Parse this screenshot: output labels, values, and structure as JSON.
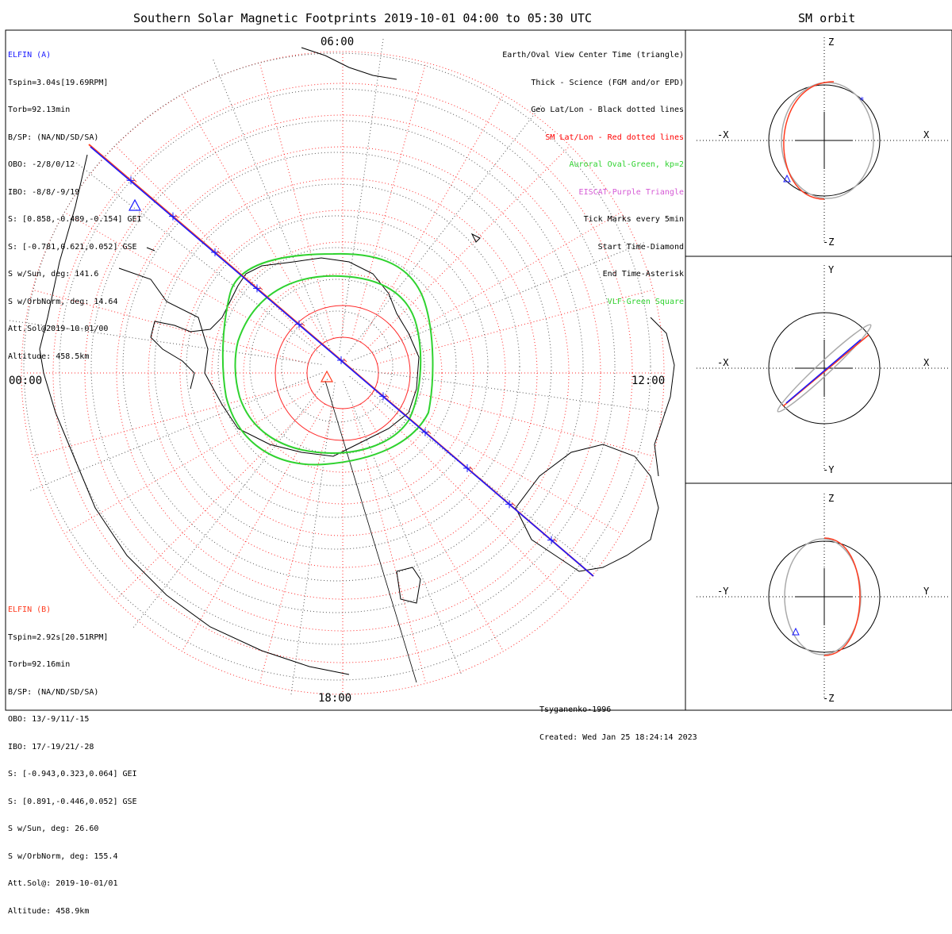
{
  "title": "Southern Solar Magnetic Footprints 2019-10-01 04:00 to 05:30 UTC",
  "right_title": "SM orbit",
  "colors": {
    "blue": "#1a1aff",
    "red": "#ff3b1f",
    "green": "#2fd22f",
    "purple": "#d55ad5",
    "grey": "#aaaaaa",
    "black": "#000000"
  },
  "elfin_a": {
    "name": "ELFIN (A)",
    "lines": [
      "Tspin=3.04s[19.69RPM]",
      "Torb=92.13min",
      "B/SP: (NA/ND/SD/SA)",
      "OBO: -2/8/0/12",
      "IBO: -8/8/-9/19",
      "S: [0.858,-0.489,-0.154] GEI",
      "S: [-0.781,0.621,0.052] GSE",
      "S w/Sun, deg: 141.6",
      "S w/OrbNorm, deg: 14.64",
      "Att.Sol@2019-10-01/00",
      "Altitude: 458.5km"
    ]
  },
  "elfin_b": {
    "name": "ELFIN (B)",
    "lines": [
      "Tspin=2.92s[20.51RPM]",
      "Torb=92.16min",
      "B/SP: (NA/ND/SD/SA)",
      "OBO: 13/-9/11/-15",
      "IBO: 17/-19/21/-28",
      "S: [-0.943,0.323,0.064] GEI",
      "S: [0.891,-0.446,0.052] GSE",
      "S w/Sun, deg: 26.60",
      "S w/OrbNorm, deg: 155.4",
      "Att.Sol@: 2019-10-01/01",
      "Altitude: 458.9km"
    ]
  },
  "legend": [
    {
      "text": "Earth/Oval View Center Time (triangle)",
      "color": "#000000"
    },
    {
      "text": "Thick - Science (FGM and/or EPD)",
      "color": "#000000"
    },
    {
      "text": "Geo Lat/Lon - Black dotted lines",
      "color": "#000000"
    },
    {
      "text": "SM Lat/Lon - Red dotted lines",
      "color": "#ff0000"
    },
    {
      "text": "Auroral Oval-Green, kp=2",
      "color": "#2fd22f"
    },
    {
      "text": "EISCAT-Purple Triangle",
      "color": "#d55ad5"
    },
    {
      "text": "Tick Marks every 5min",
      "color": "#000000"
    },
    {
      "text": "Start Time-Diamond",
      "color": "#000000"
    },
    {
      "text": "End Time-Asterisk",
      "color": "#000000"
    },
    {
      "text": "VLF-Green Square",
      "color": "#2fd22f"
    }
  ],
  "footer": {
    "model": "Tsyganenko-1996",
    "created": "Created: Wed Jan 25 18:24:14 2023"
  },
  "chart_data": [
    {
      "type": "polar-map",
      "title": "Southern Solar Magnetic Footprints 2019-10-01 04:00 to 05:30 UTC",
      "mlt_labels": {
        "top": "06:00",
        "right": "12:00",
        "bottom": "18:00",
        "left": "00:00"
      },
      "grid": true,
      "series": [
        {
          "name": "ELFIN (A)",
          "color": "#1a1aff"
        },
        {
          "name": "ELFIN (B)",
          "color": "#ff3b1f"
        }
      ]
    },
    {
      "type": "scatter",
      "title": "SM orbit",
      "panels": [
        {
          "xlabel_neg": "-X",
          "xlabel_pos": "X",
          "ylabel_pos": "Z",
          "ylabel_neg": "-Z"
        },
        {
          "xlabel_neg": "-X",
          "xlabel_pos": "X",
          "ylabel_pos": "Y",
          "ylabel_neg": "-Y"
        },
        {
          "xlabel_neg": "-Y",
          "xlabel_pos": "Y",
          "ylabel_pos": "Z",
          "ylabel_neg": "-Z"
        }
      ]
    }
  ]
}
